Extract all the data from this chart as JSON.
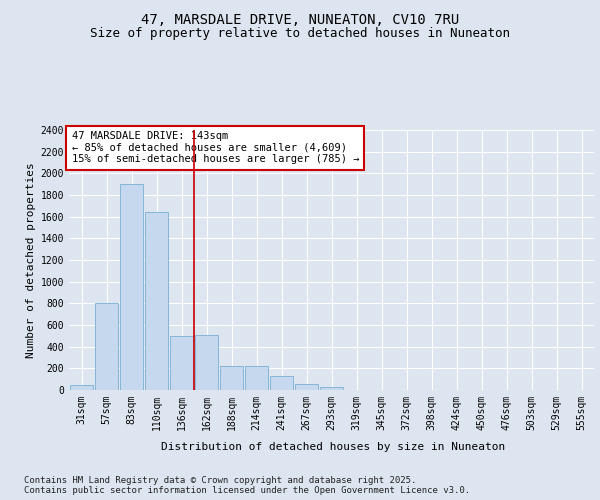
{
  "title": "47, MARSDALE DRIVE, NUNEATON, CV10 7RU",
  "subtitle": "Size of property relative to detached houses in Nuneaton",
  "xlabel": "Distribution of detached houses by size in Nuneaton",
  "ylabel": "Number of detached properties",
  "categories": [
    "31sqm",
    "57sqm",
    "83sqm",
    "110sqm",
    "136sqm",
    "162sqm",
    "188sqm",
    "214sqm",
    "241sqm",
    "267sqm",
    "293sqm",
    "319sqm",
    "345sqm",
    "372sqm",
    "398sqm",
    "424sqm",
    "450sqm",
    "476sqm",
    "503sqm",
    "529sqm",
    "555sqm"
  ],
  "values": [
    50,
    800,
    1900,
    1640,
    500,
    510,
    220,
    220,
    130,
    60,
    30,
    0,
    0,
    0,
    0,
    0,
    0,
    0,
    0,
    0,
    0
  ],
  "bar_color": "#c5d8ee",
  "bar_edge_color": "#7aafd4",
  "vline_x": 4.5,
  "vline_color": "#cc0000",
  "ylim": [
    0,
    2400
  ],
  "yticks": [
    0,
    200,
    400,
    600,
    800,
    1000,
    1200,
    1400,
    1600,
    1800,
    2000,
    2200,
    2400
  ],
  "background_color": "#dde6f0",
  "plot_bg_color": "#dde6f0",
  "annotation_box_text": "47 MARSDALE DRIVE: 143sqm\n← 85% of detached houses are smaller (4,609)\n15% of semi-detached houses are larger (785) →",
  "annotation_box_color": "#cc0000",
  "footnote": "Contains HM Land Registry data © Crown copyright and database right 2025.\nContains public sector information licensed under the Open Government Licence v3.0.",
  "title_fontsize": 10,
  "subtitle_fontsize": 9,
  "axis_label_fontsize": 8,
  "tick_fontsize": 7,
  "annotation_fontsize": 7.5,
  "footnote_fontsize": 6.5
}
